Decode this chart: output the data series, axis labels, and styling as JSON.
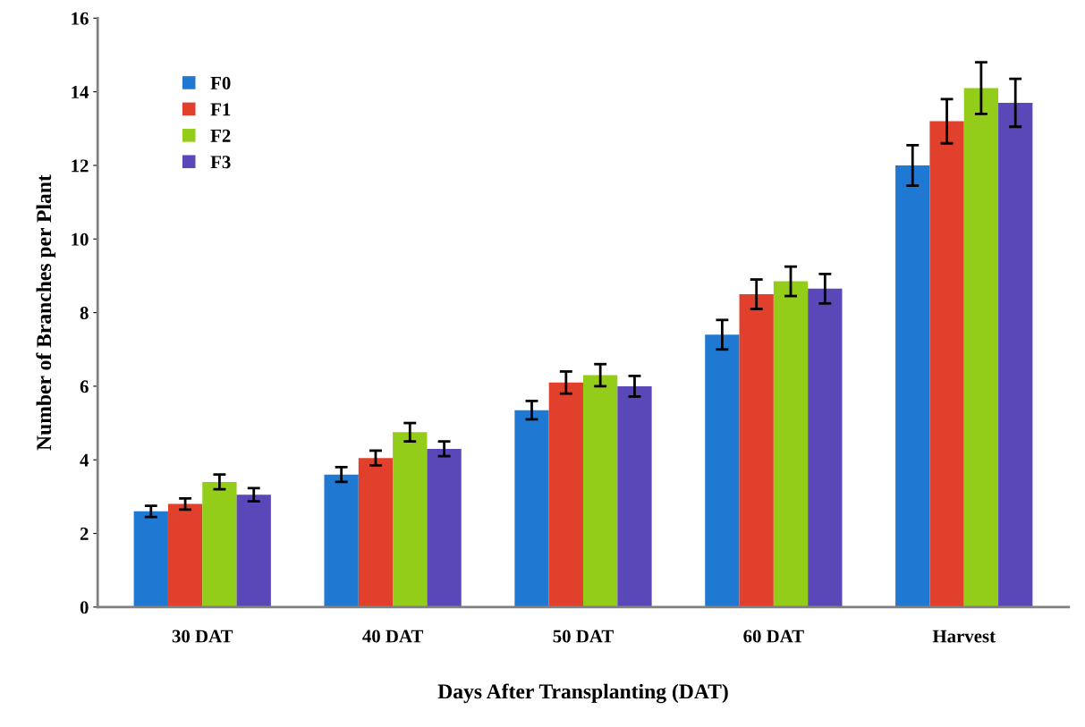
{
  "chart_data": {
    "type": "bar",
    "xlabel": "Days After Transplanting (DAT)",
    "ylabel": "Number of Branches per Plant",
    "categories": [
      "30 DAT",
      "40 DAT",
      "50 DAT",
      "60 DAT",
      "Harvest"
    ],
    "series": [
      {
        "name": "F0",
        "color": "#1f78d1",
        "values": [
          2.6,
          3.6,
          5.35,
          7.4,
          12.0
        ],
        "errors": [
          0.15,
          0.2,
          0.25,
          0.4,
          0.55
        ]
      },
      {
        "name": "F1",
        "color": "#e0402c",
        "values": [
          2.8,
          4.05,
          6.1,
          8.5,
          13.2
        ],
        "errors": [
          0.15,
          0.2,
          0.3,
          0.4,
          0.6
        ]
      },
      {
        "name": "F2",
        "color": "#94cc1a",
        "values": [
          3.4,
          4.75,
          6.3,
          8.85,
          14.1
        ],
        "errors": [
          0.2,
          0.25,
          0.3,
          0.4,
          0.7
        ]
      },
      {
        "name": "F3",
        "color": "#5a48b8",
        "values": [
          3.05,
          4.3,
          6.0,
          8.65,
          13.7
        ],
        "errors": [
          0.18,
          0.2,
          0.28,
          0.4,
          0.65
        ]
      }
    ],
    "ylim": [
      0,
      16
    ],
    "yticks": [
      0,
      2,
      4,
      6,
      8,
      10,
      12,
      14,
      16
    ],
    "grid": false,
    "legend": "top left"
  }
}
